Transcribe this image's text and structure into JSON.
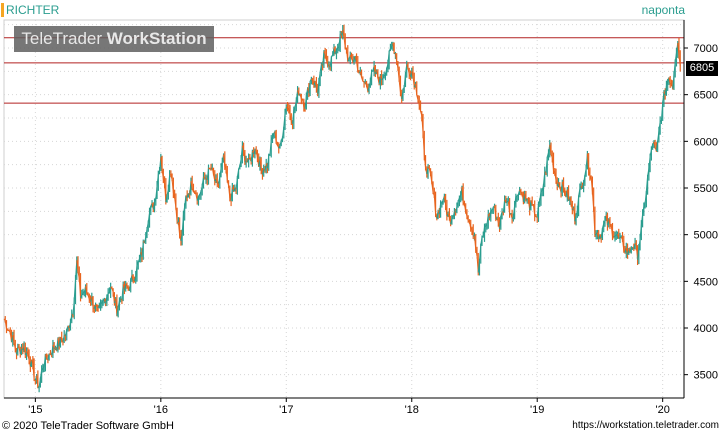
{
  "header": {
    "ticker": "RICHTER",
    "period": "naponta"
  },
  "watermark": {
    "brand": "TeleTrader",
    "product": "WorkStation"
  },
  "footer": {
    "copyright": "© 2020 TeleTrader Software GmbH",
    "url": "https://workstation.teletrader.com"
  },
  "last_price": "6805",
  "colors": {
    "up": "#2a9d8f",
    "down": "#e8641e",
    "resistance": "#b22222",
    "accent": "#f5a623"
  },
  "chart_data": {
    "type": "line",
    "title": "RICHTER",
    "xlabel": "",
    "ylabel": "",
    "ylim": [
      3250,
      7300
    ],
    "xlim": [
      2014.75,
      2020.17
    ],
    "y_ticks": [
      3500,
      4000,
      4500,
      5000,
      5500,
      6000,
      6500,
      7000
    ],
    "x_ticks": [
      {
        "value": 2015.0,
        "label": "'15"
      },
      {
        "value": 2016.0,
        "label": "'16"
      },
      {
        "value": 2017.0,
        "label": "'17"
      },
      {
        "value": 2018.0,
        "label": "'18"
      },
      {
        "value": 2019.0,
        "label": "'19"
      },
      {
        "value": 2020.0,
        "label": "'20"
      }
    ],
    "horizontal_lines": [
      7110,
      6840,
      6410
    ],
    "last_value": 6805,
    "grid": true,
    "series": [
      {
        "values": [
          [
            2014.75,
            4100
          ],
          [
            2014.8,
            3950
          ],
          [
            2014.85,
            3750
          ],
          [
            2014.9,
            3800
          ],
          [
            2014.95,
            3700
          ],
          [
            2015.0,
            3450
          ],
          [
            2015.03,
            3380
          ],
          [
            2015.06,
            3600
          ],
          [
            2015.1,
            3700
          ],
          [
            2015.15,
            3800
          ],
          [
            2015.2,
            3850
          ],
          [
            2015.25,
            3950
          ],
          [
            2015.3,
            4200
          ],
          [
            2015.33,
            4700
          ],
          [
            2015.36,
            4350
          ],
          [
            2015.4,
            4400
          ],
          [
            2015.45,
            4300
          ],
          [
            2015.5,
            4150
          ],
          [
            2015.55,
            4300
          ],
          [
            2015.6,
            4450
          ],
          [
            2015.65,
            4200
          ],
          [
            2015.7,
            4400
          ],
          [
            2015.75,
            4450
          ],
          [
            2015.8,
            4600
          ],
          [
            2015.85,
            4800
          ],
          [
            2015.9,
            5200
          ],
          [
            2015.95,
            5350
          ],
          [
            2016.0,
            5850
          ],
          [
            2016.04,
            5400
          ],
          [
            2016.08,
            5700
          ],
          [
            2016.12,
            5300
          ],
          [
            2016.16,
            4900
          ],
          [
            2016.2,
            5400
          ],
          [
            2016.25,
            5550
          ],
          [
            2016.3,
            5400
          ],
          [
            2016.35,
            5600
          ],
          [
            2016.4,
            5700
          ],
          [
            2016.45,
            5500
          ],
          [
            2016.5,
            5800
          ],
          [
            2016.55,
            5400
          ],
          [
            2016.6,
            5500
          ],
          [
            2016.65,
            5900
          ],
          [
            2016.7,
            5750
          ],
          [
            2016.75,
            5950
          ],
          [
            2016.8,
            5700
          ],
          [
            2016.85,
            5750
          ],
          [
            2016.9,
            6100
          ],
          [
            2016.95,
            5900
          ],
          [
            2017.0,
            6400
          ],
          [
            2017.05,
            6250
          ],
          [
            2017.1,
            6550
          ],
          [
            2017.15,
            6400
          ],
          [
            2017.2,
            6700
          ],
          [
            2017.25,
            6550
          ],
          [
            2017.3,
            6900
          ],
          [
            2017.35,
            6850
          ],
          [
            2017.4,
            7000
          ],
          [
            2017.45,
            7150
          ],
          [
            2017.5,
            6850
          ],
          [
            2017.55,
            6900
          ],
          [
            2017.6,
            6650
          ],
          [
            2017.65,
            6600
          ],
          [
            2017.7,
            6750
          ],
          [
            2017.75,
            6650
          ],
          [
            2017.8,
            6800
          ],
          [
            2017.85,
            7050
          ],
          [
            2017.88,
            6900
          ],
          [
            2017.92,
            6450
          ],
          [
            2017.96,
            6800
          ],
          [
            2018.0,
            6750
          ],
          [
            2018.05,
            6500
          ],
          [
            2018.08,
            6250
          ],
          [
            2018.1,
            5800
          ],
          [
            2018.15,
            5600
          ],
          [
            2018.2,
            5200
          ],
          [
            2018.25,
            5400
          ],
          [
            2018.3,
            5150
          ],
          [
            2018.35,
            5300
          ],
          [
            2018.4,
            5450
          ],
          [
            2018.45,
            5200
          ],
          [
            2018.5,
            5000
          ],
          [
            2018.53,
            4600
          ],
          [
            2018.56,
            4950
          ],
          [
            2018.6,
            5150
          ],
          [
            2018.65,
            5300
          ],
          [
            2018.7,
            5100
          ],
          [
            2018.75,
            5400
          ],
          [
            2018.8,
            5200
          ],
          [
            2018.85,
            5500
          ],
          [
            2018.9,
            5400
          ],
          [
            2018.95,
            5300
          ],
          [
            2019.0,
            5200
          ],
          [
            2019.05,
            5550
          ],
          [
            2019.1,
            5950
          ],
          [
            2019.15,
            5600
          ],
          [
            2019.2,
            5500
          ],
          [
            2019.25,
            5400
          ],
          [
            2019.3,
            5200
          ],
          [
            2019.35,
            5500
          ],
          [
            2019.4,
            5800
          ],
          [
            2019.43,
            5650
          ],
          [
            2019.46,
            5050
          ],
          [
            2019.5,
            5000
          ],
          [
            2019.55,
            5150
          ],
          [
            2019.6,
            5050
          ],
          [
            2019.65,
            4950
          ],
          [
            2019.7,
            4850
          ],
          [
            2019.73,
            4800
          ],
          [
            2019.76,
            4900
          ],
          [
            2019.8,
            4800
          ],
          [
            2019.84,
            5150
          ],
          [
            2019.88,
            5600
          ],
          [
            2019.92,
            6000
          ],
          [
            2019.95,
            5850
          ],
          [
            2019.98,
            6200
          ],
          [
            2020.02,
            6550
          ],
          [
            2020.05,
            6700
          ],
          [
            2020.08,
            6600
          ],
          [
            2020.1,
            6900
          ],
          [
            2020.12,
            7100
          ],
          [
            2020.14,
            6805
          ]
        ]
      }
    ]
  }
}
